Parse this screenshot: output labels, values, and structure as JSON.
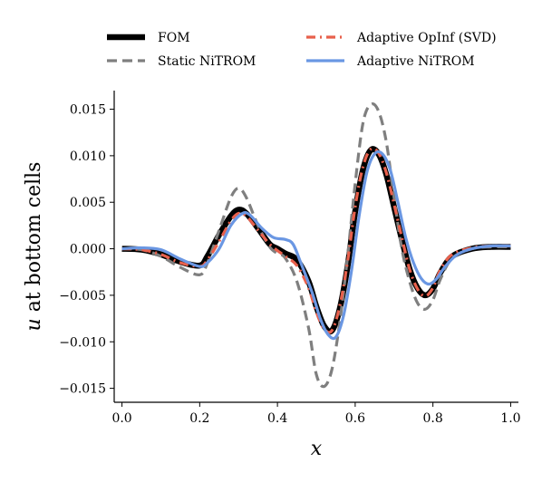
{
  "chart_data": {
    "type": "line",
    "title": "",
    "xlabel": "x",
    "ylabel_var": "u",
    "ylabel_rest": " at bottom cells",
    "xlim": [
      -0.02,
      1.02
    ],
    "ylim": [
      -0.0165,
      0.017
    ],
    "xticks": [
      0.0,
      0.2,
      0.4,
      0.6,
      0.8,
      1.0
    ],
    "xtick_labels": [
      "0.0",
      "0.2",
      "0.4",
      "0.6",
      "0.8",
      "1.0"
    ],
    "yticks": [
      -0.015,
      -0.01,
      -0.005,
      0.0,
      0.005,
      0.01,
      0.015
    ],
    "ytick_labels": [
      "−0.015",
      "−0.010",
      "−0.005",
      "0.000",
      "0.005",
      "0.010",
      "0.015"
    ],
    "grid": false,
    "legend_position": "top, above plot, two columns",
    "series": [
      {
        "name": "FOM",
        "color": "#000000",
        "style": "solid",
        "x": [
          0.0,
          0.05,
          0.1,
          0.15,
          0.2,
          0.22,
          0.25,
          0.28,
          0.3,
          0.32,
          0.35,
          0.38,
          0.4,
          0.42,
          0.45,
          0.48,
          0.5,
          0.52,
          0.54,
          0.56,
          0.58,
          0.6,
          0.62,
          0.64,
          0.66,
          0.68,
          0.7,
          0.72,
          0.74,
          0.76,
          0.78,
          0.8,
          0.82,
          0.85,
          0.9,
          0.95,
          1.0
        ],
        "y": [
          0.0,
          -0.0001,
          -0.0006,
          -0.0014,
          -0.0018,
          -0.0008,
          0.0015,
          0.0035,
          0.0042,
          0.0038,
          0.0022,
          0.0005,
          0.0,
          -0.0005,
          -0.0012,
          -0.0035,
          -0.0062,
          -0.0083,
          -0.0088,
          -0.0065,
          -0.002,
          0.004,
          0.0085,
          0.0106,
          0.0102,
          0.008,
          0.0045,
          0.001,
          -0.0022,
          -0.0042,
          -0.005,
          -0.0043,
          -0.0025,
          -0.0008,
          0.0,
          0.0002,
          0.0002
        ]
      },
      {
        "name": "Static NiTROM",
        "color": "#7f7f7f",
        "style": "dashed",
        "x": [
          0.0,
          0.05,
          0.1,
          0.15,
          0.2,
          0.22,
          0.25,
          0.28,
          0.3,
          0.32,
          0.35,
          0.38,
          0.4,
          0.42,
          0.45,
          0.48,
          0.5,
          0.52,
          0.54,
          0.56,
          0.58,
          0.6,
          0.62,
          0.64,
          0.66,
          0.68,
          0.7,
          0.72,
          0.74,
          0.76,
          0.78,
          0.8,
          0.82,
          0.85,
          0.9,
          0.95,
          1.0
        ],
        "y": [
          0.0,
          -0.0001,
          -0.0008,
          -0.002,
          -0.0028,
          -0.0015,
          0.002,
          0.0055,
          0.0065,
          0.0055,
          0.0025,
          0.0002,
          -0.0005,
          -0.001,
          -0.0035,
          -0.0085,
          -0.0135,
          -0.0148,
          -0.013,
          -0.008,
          -0.001,
          0.007,
          0.0135,
          0.0155,
          0.0148,
          0.0115,
          0.0055,
          0.0,
          -0.0035,
          -0.0058,
          -0.0065,
          -0.0055,
          -0.0032,
          -0.001,
          0.0,
          0.0002,
          0.0002
        ]
      },
      {
        "name": "Adaptive OpInf (SVD)",
        "color": "#e8604c",
        "style": "dashdot",
        "x": [
          0.0,
          0.05,
          0.1,
          0.15,
          0.2,
          0.22,
          0.25,
          0.28,
          0.3,
          0.32,
          0.35,
          0.38,
          0.4,
          0.42,
          0.45,
          0.48,
          0.5,
          0.52,
          0.54,
          0.56,
          0.58,
          0.6,
          0.62,
          0.64,
          0.66,
          0.68,
          0.7,
          0.72,
          0.74,
          0.76,
          0.78,
          0.8,
          0.82,
          0.85,
          0.9,
          0.95,
          1.0
        ],
        "y": [
          0.0,
          -0.0001,
          -0.0006,
          -0.0015,
          -0.0019,
          -0.0012,
          0.0008,
          0.003,
          0.0038,
          0.0035,
          0.002,
          0.0005,
          -0.0002,
          -0.0008,
          -0.0018,
          -0.0042,
          -0.0068,
          -0.0086,
          -0.0088,
          -0.0062,
          -0.0015,
          0.0045,
          0.0088,
          0.0107,
          0.0103,
          0.0082,
          0.0048,
          0.0012,
          -0.0022,
          -0.0043,
          -0.0051,
          -0.0042,
          -0.0022,
          -0.0006,
          0.0001,
          0.0003,
          0.0003
        ]
      },
      {
        "name": "Adaptive NiTROM",
        "color": "#6a97e3",
        "style": "solid",
        "x": [
          0.0,
          0.05,
          0.1,
          0.15,
          0.2,
          0.22,
          0.25,
          0.28,
          0.31,
          0.33,
          0.36,
          0.39,
          0.42,
          0.44,
          0.46,
          0.49,
          0.51,
          0.53,
          0.55,
          0.57,
          0.59,
          0.61,
          0.63,
          0.65,
          0.67,
          0.69,
          0.71,
          0.73,
          0.75,
          0.77,
          0.79,
          0.81,
          0.83,
          0.86,
          0.9,
          0.95,
          1.0
        ],
        "y": [
          0.0,
          0.0001,
          -0.0001,
          -0.0011,
          -0.0019,
          -0.0015,
          0.0,
          0.0025,
          0.0038,
          0.0036,
          0.0022,
          0.0012,
          0.001,
          0.0005,
          -0.0015,
          -0.0048,
          -0.0075,
          -0.0092,
          -0.0095,
          -0.0072,
          -0.0025,
          0.0035,
          0.0082,
          0.0102,
          0.0102,
          0.0085,
          0.005,
          0.0012,
          -0.0015,
          -0.0032,
          -0.0038,
          -0.0032,
          -0.002,
          -0.0007,
          0.0,
          0.0003,
          0.0003
        ]
      }
    ]
  }
}
